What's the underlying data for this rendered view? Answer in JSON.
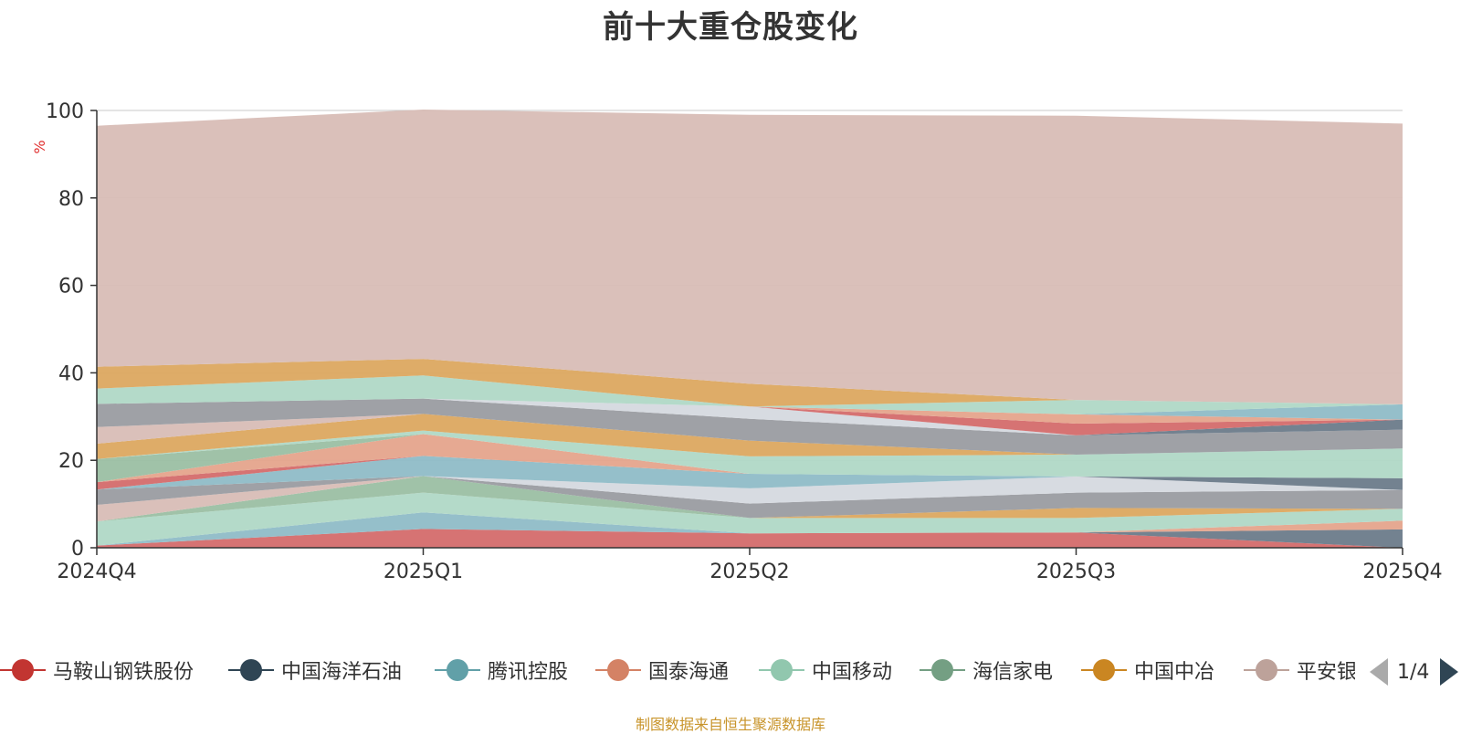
{
  "chart_data": {
    "type": "area",
    "stacked": true,
    "title": "前十大重仓股变化",
    "ylabel": "%",
    "ylim": [
      0,
      100
    ],
    "yticks": [
      0,
      20,
      40,
      60,
      80,
      100
    ],
    "categories": [
      "2024Q4",
      "2025Q1",
      "2025Q2",
      "2025Q3",
      "2025Q4"
    ],
    "series": [
      {
        "name": "马鞍山钢铁股份",
        "color": "#d46b6b",
        "values": [
          0.5,
          4.3,
          3.3,
          3.5,
          0
        ]
      },
      {
        "name": "中国海洋石油",
        "color": "#6b7b8a",
        "values": [
          0,
          0,
          0,
          0,
          4.2
        ]
      },
      {
        "name": "腾讯控股",
        "color": "#8fbcc7",
        "values": [
          0,
          3.8,
          0,
          0,
          0
        ]
      },
      {
        "name": "国泰海通",
        "color": "#e5a48c",
        "values": [
          0,
          0,
          0,
          0,
          2
        ]
      },
      {
        "name": "中国移动",
        "color": "#b0d8c6",
        "values": [
          5.5,
          4.5,
          3.5,
          3.3,
          2.7
        ]
      },
      {
        "name": "海信家电",
        "color": "#9bbfa3",
        "values": [
          0,
          3.8,
          0,
          0,
          0
        ]
      },
      {
        "name": "中国中冶",
        "color": "#dca860",
        "values": [
          0,
          0,
          0,
          2.3,
          0
        ]
      },
      {
        "name": "平安银行",
        "color": "#d8bdb6",
        "values": [
          3.8,
          0,
          0,
          0,
          0
        ]
      },
      {
        "name": "",
        "color": "#9a9ca1",
        "values": [
          3.5,
          0,
          3.3,
          3.5,
          4.3
        ]
      },
      {
        "name": "",
        "color": "#d5d9df",
        "values": [
          0,
          0,
          3.5,
          3.7,
          0
        ]
      },
      {
        "name": "",
        "color": "#6b7b8a",
        "values": [
          0,
          0,
          0,
          0,
          2.7
        ]
      },
      {
        "name": "",
        "color": "#8fbcc7",
        "values": [
          0,
          4.6,
          3.3,
          0,
          0
        ]
      },
      {
        "name": "",
        "color": "#d46b6b",
        "values": [
          1.7,
          0,
          0,
          0,
          0
        ]
      },
      {
        "name": "",
        "color": "#e5a48c",
        "values": [
          0,
          5,
          0,
          0,
          0
        ]
      },
      {
        "name": "",
        "color": "#9bbfa3",
        "values": [
          5.3,
          0,
          0,
          0,
          0
        ]
      },
      {
        "name": "",
        "color": "#b0d8c6",
        "values": [
          0,
          0.8,
          4,
          5,
          6.8
        ]
      },
      {
        "name": "",
        "color": "#dca860",
        "values": [
          3.5,
          3.8,
          3.6,
          0,
          0
        ]
      },
      {
        "name": "",
        "color": "#d8bdb6",
        "values": [
          3.8,
          0,
          0,
          0,
          0
        ]
      },
      {
        "name": "",
        "color": "#9a9ca1",
        "values": [
          5.3,
          3.5,
          5,
          4.4,
          4.3
        ]
      },
      {
        "name": "",
        "color": "#d5d9df",
        "values": [
          0,
          0,
          2.8,
          0,
          0
        ]
      },
      {
        "name": "",
        "color": "#6b7b8a",
        "values": [
          0,
          0,
          0,
          0,
          2.3
        ]
      },
      {
        "name": "",
        "color": "#d46b6b",
        "values": [
          0,
          0,
          0,
          2.7,
          0
        ]
      },
      {
        "name": "",
        "color": "#e5a48c",
        "values": [
          0,
          0,
          0,
          2.1,
          0
        ]
      },
      {
        "name": "",
        "color": "#8fbcc7",
        "values": [
          0,
          0,
          0,
          0,
          3.5
        ]
      },
      {
        "name": "",
        "color": "#b0d8c6",
        "values": [
          3.5,
          5.3,
          0,
          3.3,
          0
        ]
      },
      {
        "name": "",
        "color": "#dca860",
        "values": [
          5,
          3.8,
          5.2,
          0,
          0
        ]
      },
      {
        "name": "",
        "color": "#d8bdb6",
        "values": [
          55.1,
          57,
          61.5,
          65,
          64.2
        ]
      }
    ],
    "legend": {
      "position": "bottom",
      "items": [
        {
          "label": "马鞍山钢铁股份",
          "color": "#c23531"
        },
        {
          "label": "中国海洋石油",
          "color": "#2f4554"
        },
        {
          "label": "腾讯控股",
          "color": "#61a0a8"
        },
        {
          "label": "国泰海通",
          "color": "#d48265"
        },
        {
          "label": "中国移动",
          "color": "#91c7ae"
        },
        {
          "label": "海信家电",
          "color": "#749f83"
        },
        {
          "label": "中国中冶",
          "color": "#ca8622"
        },
        {
          "label": "平安银行",
          "color": "#bda29a"
        }
      ],
      "page": "1/4"
    },
    "source": "制图数据来自恒生聚源数据库"
  }
}
